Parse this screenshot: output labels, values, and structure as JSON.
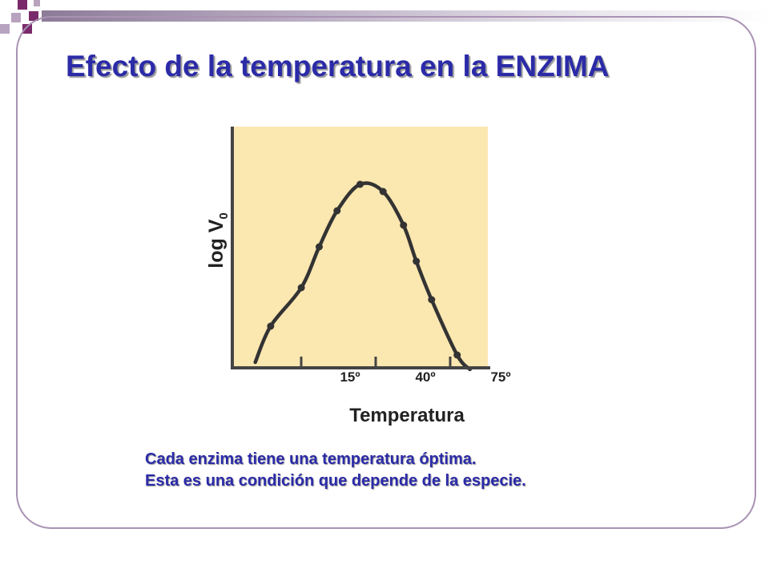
{
  "slide": {
    "title": "Efecto de la temperatura en la ENZIMA",
    "caption_lines": [
      "Cada enzima tiene una temperatura óptima.",
      "Esta es una condición que depende de la especie."
    ]
  },
  "colors": {
    "title": "#2b2ba8",
    "frame": "#a992b3",
    "plot_background": "#fbe7b0",
    "curve": "#333333",
    "corner_squares": "#7a2a6a"
  },
  "chart_data": {
    "type": "line",
    "xlabel": "Temperatura",
    "ylabel": "log V",
    "ylabel_subscript": "0",
    "xticks": [
      "15º",
      "40º",
      "75º"
    ],
    "x_range": [
      0,
      100
    ],
    "y_range": [
      0,
      100
    ],
    "points": [
      {
        "x": 9,
        "y": 2
      },
      {
        "x": 15,
        "y": 17
      },
      {
        "x": 27,
        "y": 33
      },
      {
        "x": 34,
        "y": 50
      },
      {
        "x": 41,
        "y": 65
      },
      {
        "x": 50,
        "y": 76
      },
      {
        "x": 59,
        "y": 73
      },
      {
        "x": 67,
        "y": 59
      },
      {
        "x": 72,
        "y": 44
      },
      {
        "x": 78,
        "y": 28
      },
      {
        "x": 88,
        "y": 5
      },
      {
        "x": 93,
        "y": -1
      }
    ],
    "markers": [
      {
        "x": 15,
        "y": 17
      },
      {
        "x": 27,
        "y": 33
      },
      {
        "x": 34,
        "y": 50
      },
      {
        "x": 41,
        "y": 65
      },
      {
        "x": 50,
        "y": 76
      },
      {
        "x": 59,
        "y": 73
      },
      {
        "x": 67,
        "y": 59
      },
      {
        "x": 72,
        "y": 44
      },
      {
        "x": 78,
        "y": 28
      },
      {
        "x": 88,
        "y": 5
      }
    ]
  }
}
